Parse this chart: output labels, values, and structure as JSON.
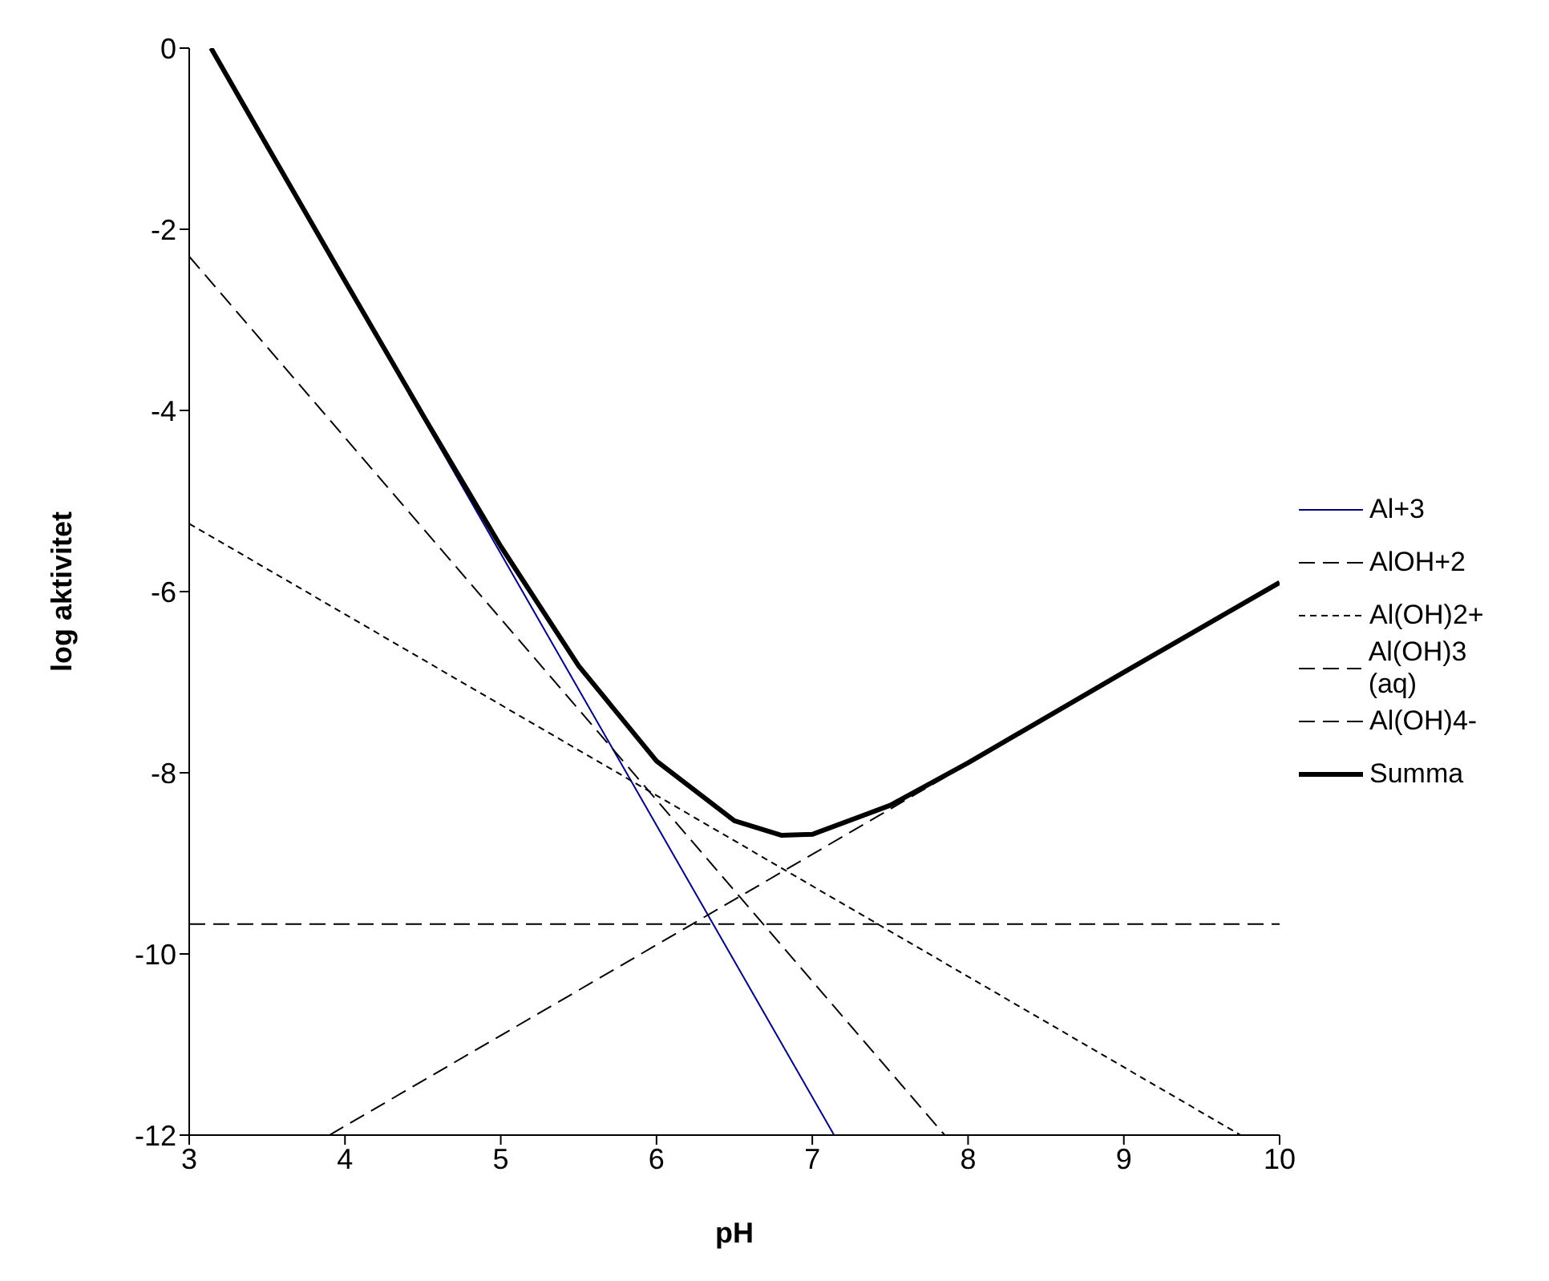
{
  "chart_data": {
    "type": "line",
    "xlabel": "pH",
    "ylabel": "log aktivitet",
    "xlim": [
      3,
      10
    ],
    "ylim": [
      -12,
      0
    ],
    "xticks": [
      3,
      4,
      5,
      6,
      7,
      8,
      9,
      10
    ],
    "yticks": [
      -12,
      -10,
      -8,
      -6,
      -4,
      -2,
      0
    ],
    "grid": false,
    "legend": "right",
    "marker": "none",
    "series": [
      {
        "name": "Al+3",
        "color": "#000080",
        "line_style": "solid",
        "x": [
          3.14,
          7.14
        ],
        "values": [
          0,
          -12
        ]
      },
      {
        "name": "AlOH+2",
        "color": "#000000",
        "line_style": "dashed",
        "x": [
          3,
          7.85
        ],
        "values": [
          -2.3,
          -12
        ]
      },
      {
        "name": "Al(OH)2+",
        "color": "#000000",
        "line_style": "dotted",
        "x": [
          3,
          9.75
        ],
        "values": [
          -5.25,
          -12
        ]
      },
      {
        "name": "Al(OH)3 (aq)",
        "color": "#000000",
        "line_style": "dashed",
        "x": [
          3,
          10
        ],
        "values": [
          -9.67,
          -9.67
        ]
      },
      {
        "name": "Al(OH)4-",
        "color": "#000000",
        "line_style": "dashed",
        "x": [
          3.9,
          10
        ],
        "values": [
          -12,
          -5.9
        ]
      },
      {
        "name": "Summa",
        "color": "#000000",
        "line_style": "solid",
        "x": [
          3.14,
          3.5,
          4,
          4.5,
          5,
          5.5,
          6,
          6.5,
          6.8,
          7,
          7.5,
          8,
          9,
          10
        ],
        "values": [
          0,
          -1.08,
          -2.57,
          -4.05,
          -5.5,
          -6.82,
          -7.87,
          -8.53,
          -8.69,
          -8.68,
          -8.36,
          -7.89,
          -6.89,
          -5.9
        ]
      }
    ]
  }
}
